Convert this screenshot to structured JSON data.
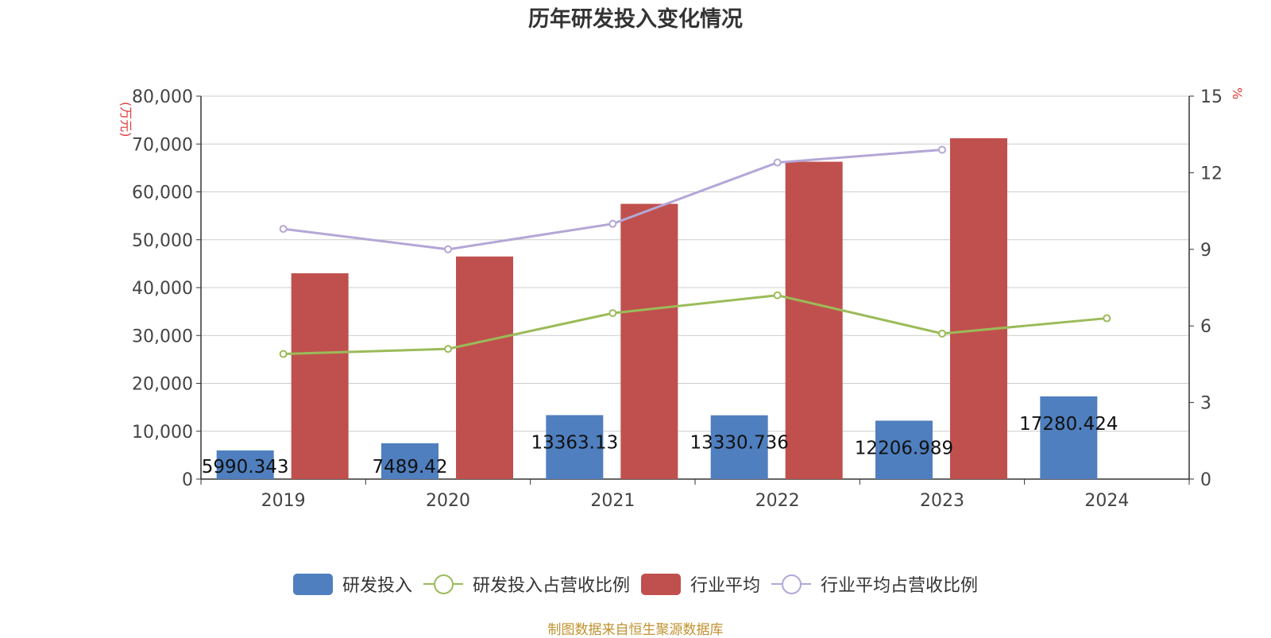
{
  "title": "历年研发投入变化情况",
  "source": "制图数据来自恒生聚源数据库",
  "left_axis_unit": "(万元)",
  "right_axis_unit": "%",
  "colors": {
    "rd_bar": "#4f7fbf",
    "industry_bar": "#c0504d",
    "rd_ratio_line": "#9bbb59",
    "industry_ratio_line": "#b4a7d6",
    "grid": "#cccccc",
    "axis": "#333333"
  },
  "chart_data": {
    "type": "bar",
    "categories": [
      "2019",
      "2020",
      "2021",
      "2022",
      "2023",
      "2024"
    ],
    "y_left": {
      "min": 0,
      "max": 80000,
      "ticks": [
        "0",
        "10,000",
        "20,000",
        "30,000",
        "40,000",
        "50,000",
        "60,000",
        "70,000",
        "80,000"
      ],
      "tick_values": [
        0,
        10000,
        20000,
        30000,
        40000,
        50000,
        60000,
        70000,
        80000
      ]
    },
    "y_right": {
      "min": 0,
      "max": 15,
      "ticks": [
        "0",
        "3",
        "6",
        "9",
        "12",
        "15"
      ],
      "tick_values": [
        0,
        3,
        6,
        9,
        12,
        15
      ]
    },
    "grid": true,
    "legend_position": "bottom",
    "series": [
      {
        "name": "研发投入",
        "kind": "bar",
        "axis": "left",
        "values": [
          5990.343,
          7489.42,
          13363.13,
          13330.736,
          12206.989,
          17280.424
        ],
        "labels": [
          "5990.343",
          "7489.42",
          "13363.13",
          "13330.736",
          "12206.989",
          "17280.424"
        ]
      },
      {
        "name": "研发投入占营收比例",
        "kind": "line",
        "axis": "right",
        "values": [
          4.9,
          5.1,
          6.5,
          7.2,
          5.7,
          6.3
        ]
      },
      {
        "name": "行业平均",
        "kind": "bar",
        "axis": "left",
        "values": [
          43000,
          46500,
          57500,
          66300,
          71200,
          null
        ]
      },
      {
        "name": "行业平均占营收比例",
        "kind": "line",
        "axis": "right",
        "values": [
          9.8,
          9.0,
          10.0,
          12.4,
          12.9,
          null
        ]
      }
    ]
  }
}
